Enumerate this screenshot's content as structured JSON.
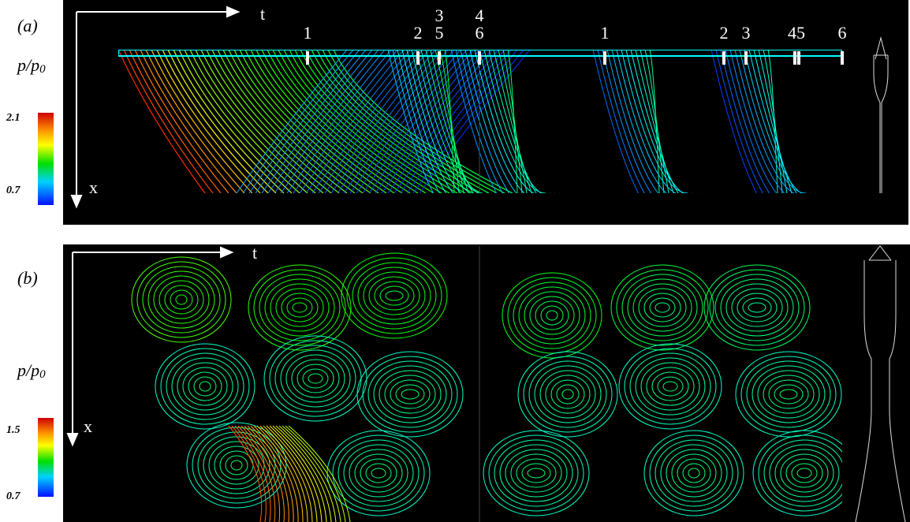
{
  "panels": [
    {
      "label": "(a)",
      "quantity": "p/p",
      "quantity_sub": "0",
      "colorbar_max": "2.1",
      "colorbar_min": "0.7",
      "t_axis": "t",
      "x_axis": "x",
      "markers": [
        "1",
        "2",
        "3",
        "5",
        "4",
        "6",
        "1",
        "2",
        "3",
        "45",
        "6"
      ]
    },
    {
      "label": "(b)",
      "quantity": "p/p",
      "quantity_sub": "0",
      "colorbar_max": "1.5",
      "colorbar_min": "0.7",
      "t_axis": "t",
      "x_axis": "x"
    }
  ]
}
